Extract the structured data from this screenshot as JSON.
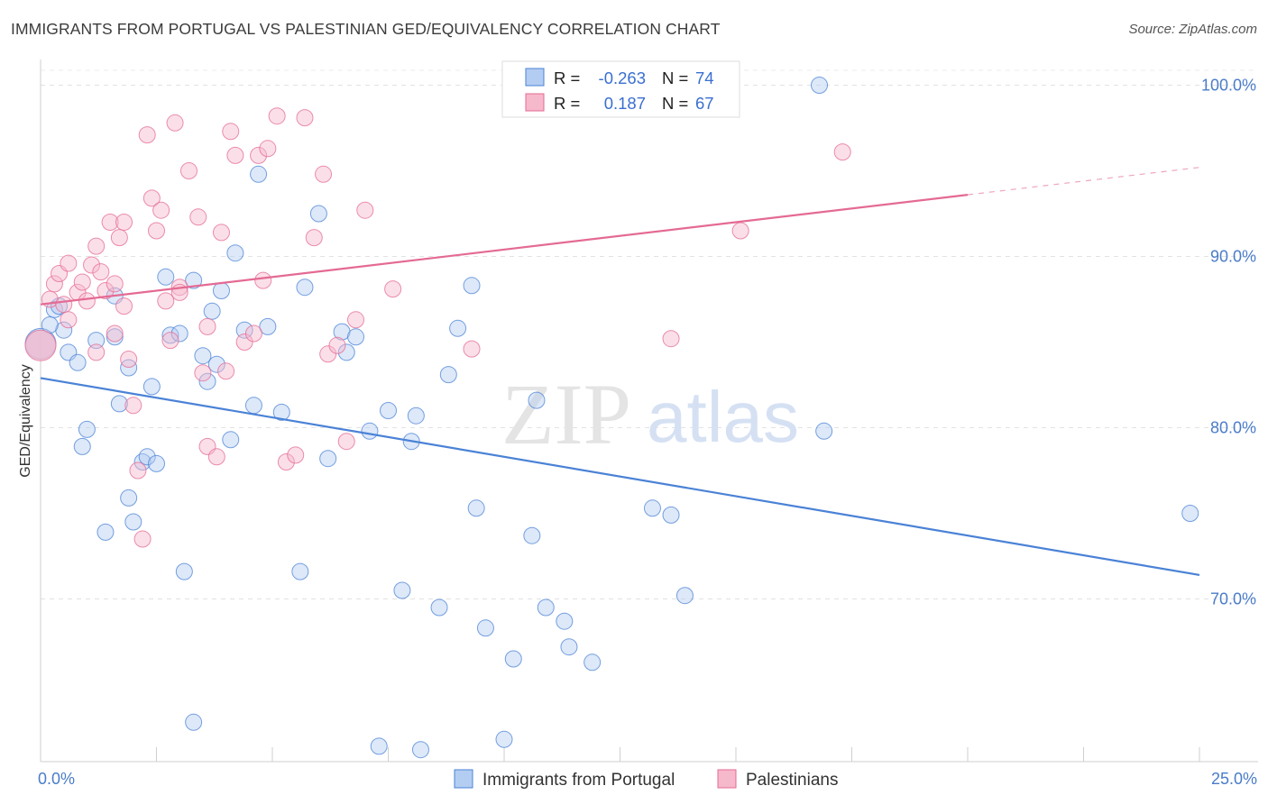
{
  "title": "IMMIGRANTS FROM PORTUGAL VS PALESTINIAN GED/EQUIVALENCY CORRELATION CHART",
  "source": "Source: ZipAtlas.com",
  "watermark": {
    "zip": "ZIP",
    "atlas": "atlas"
  },
  "legend_top": [
    {
      "r_label": "R =",
      "r_value": "-0.263",
      "n_label": "N =",
      "n_value": "74"
    },
    {
      "r_label": "R =",
      "r_value": "0.187",
      "n_label": "N =",
      "n_value": "67"
    }
  ],
  "legend_bottom": [
    "Immigrants from Portugal",
    "Palestinians"
  ],
  "chart_data": {
    "type": "scatter",
    "xlabel": "",
    "ylabel": "GED/Equivalency",
    "xlim": [
      0,
      25
    ],
    "ylim": [
      60.5,
      101.5
    ],
    "x_tick_labels": [
      {
        "value": 0,
        "label": "0.0%"
      },
      {
        "value": 25,
        "label": "25.0%"
      }
    ],
    "y_tick_labels": [
      {
        "value": 100,
        "label": "100.0%"
      },
      {
        "value": 90,
        "label": "90.0%"
      },
      {
        "value": 80,
        "label": "80.0%"
      },
      {
        "value": 70,
        "label": "70.0%"
      }
    ],
    "grid": true,
    "legend": "top-center",
    "colors": {
      "Immigrants from Portugal": "#4a82d6",
      "Palestinians": "#e46a93",
      "Immigrants from Portugal_fill": "#b3cdf2",
      "Palestinians_fill": "#f6b8cb"
    },
    "series": [
      {
        "name": "Immigrants from Portugal",
        "trend": {
          "x": [
            0,
            25
          ],
          "y": [
            82.9,
            71.4
          ],
          "dashed_from": null
        },
        "points": [
          [
            0.0,
            84.9
          ],
          [
            0.3,
            86.9
          ],
          [
            0.4,
            87.1
          ],
          [
            0.5,
            85.7
          ],
          [
            0.6,
            84.4
          ],
          [
            0.8,
            83.8
          ],
          [
            0.9,
            78.9
          ],
          [
            1.0,
            79.9
          ],
          [
            1.2,
            85.1
          ],
          [
            1.4,
            73.9
          ],
          [
            1.6,
            85.3
          ],
          [
            1.6,
            87.7
          ],
          [
            1.7,
            81.4
          ],
          [
            1.9,
            83.5
          ],
          [
            1.9,
            75.9
          ],
          [
            2.0,
            74.5
          ],
          [
            2.2,
            78.0
          ],
          [
            2.3,
            78.3
          ],
          [
            2.4,
            82.4
          ],
          [
            2.5,
            77.9
          ],
          [
            2.7,
            88.8
          ],
          [
            2.8,
            85.4
          ],
          [
            3.0,
            85.5
          ],
          [
            3.1,
            71.6
          ],
          [
            3.3,
            62.8
          ],
          [
            3.3,
            88.6
          ],
          [
            3.5,
            84.2
          ],
          [
            3.6,
            82.7
          ],
          [
            3.7,
            86.8
          ],
          [
            3.8,
            83.7
          ],
          [
            3.9,
            88.0
          ],
          [
            4.1,
            79.3
          ],
          [
            4.2,
            90.2
          ],
          [
            4.4,
            85.7
          ],
          [
            4.6,
            81.3
          ],
          [
            4.7,
            94.8
          ],
          [
            4.9,
            85.9
          ],
          [
            5.2,
            80.9
          ],
          [
            5.6,
            71.6
          ],
          [
            5.7,
            88.2
          ],
          [
            6.0,
            92.5
          ],
          [
            6.2,
            78.2
          ],
          [
            6.5,
            85.6
          ],
          [
            6.6,
            84.4
          ],
          [
            6.8,
            85.3
          ],
          [
            7.1,
            79.8
          ],
          [
            7.3,
            61.4
          ],
          [
            7.5,
            81.0
          ],
          [
            7.8,
            70.5
          ],
          [
            8.0,
            79.2
          ],
          [
            8.1,
            80.7
          ],
          [
            8.2,
            61.2
          ],
          [
            8.6,
            69.5
          ],
          [
            8.8,
            83.1
          ],
          [
            9.0,
            85.8
          ],
          [
            9.3,
            88.3
          ],
          [
            9.4,
            75.3
          ],
          [
            9.6,
            68.3
          ],
          [
            10.0,
            61.8
          ],
          [
            10.2,
            66.5
          ],
          [
            10.6,
            73.7
          ],
          [
            10.7,
            81.6
          ],
          [
            10.9,
            69.5
          ],
          [
            11.3,
            68.7
          ],
          [
            11.4,
            67.2
          ],
          [
            11.9,
            66.3
          ],
          [
            13.2,
            75.3
          ],
          [
            13.6,
            74.9
          ],
          [
            13.9,
            70.2
          ],
          [
            14.1,
            100.0
          ],
          [
            16.8,
            100.0
          ],
          [
            16.9,
            79.8
          ],
          [
            24.8,
            75.0
          ],
          [
            0.2,
            86.0
          ]
        ]
      },
      {
        "name": "Palestinians",
        "trend": {
          "x": [
            0,
            25
          ],
          "y": [
            87.2,
            95.2
          ],
          "dashed_from": 20
        },
        "points": [
          [
            0.0,
            84.8
          ],
          [
            0.2,
            87.5
          ],
          [
            0.3,
            88.4
          ],
          [
            0.4,
            89.0
          ],
          [
            0.5,
            87.2
          ],
          [
            0.6,
            86.3
          ],
          [
            0.6,
            89.6
          ],
          [
            0.8,
            87.9
          ],
          [
            0.9,
            88.5
          ],
          [
            1.0,
            87.4
          ],
          [
            1.1,
            89.5
          ],
          [
            1.2,
            84.4
          ],
          [
            1.2,
            90.6
          ],
          [
            1.3,
            89.1
          ],
          [
            1.4,
            88.0
          ],
          [
            1.5,
            92.0
          ],
          [
            1.6,
            85.5
          ],
          [
            1.6,
            88.4
          ],
          [
            1.7,
            91.1
          ],
          [
            1.8,
            92.0
          ],
          [
            1.8,
            87.1
          ],
          [
            1.9,
            84.0
          ],
          [
            2.0,
            81.3
          ],
          [
            2.1,
            77.5
          ],
          [
            2.2,
            73.5
          ],
          [
            2.3,
            97.1
          ],
          [
            2.4,
            93.4
          ],
          [
            2.5,
            91.5
          ],
          [
            2.6,
            92.7
          ],
          [
            2.7,
            87.4
          ],
          [
            2.8,
            85.1
          ],
          [
            2.9,
            97.8
          ],
          [
            3.0,
            88.2
          ],
          [
            3.0,
            87.9
          ],
          [
            3.2,
            95.0
          ],
          [
            3.4,
            92.3
          ],
          [
            3.5,
            83.2
          ],
          [
            3.6,
            78.9
          ],
          [
            3.6,
            85.9
          ],
          [
            3.8,
            78.3
          ],
          [
            3.9,
            91.4
          ],
          [
            4.0,
            83.3
          ],
          [
            4.1,
            97.3
          ],
          [
            4.2,
            95.9
          ],
          [
            4.4,
            85.0
          ],
          [
            4.6,
            85.5
          ],
          [
            4.7,
            95.9
          ],
          [
            4.8,
            88.6
          ],
          [
            4.9,
            96.3
          ],
          [
            5.1,
            98.2
          ],
          [
            5.3,
            78.0
          ],
          [
            5.5,
            78.4
          ],
          [
            5.7,
            98.1
          ],
          [
            5.9,
            91.1
          ],
          [
            6.1,
            94.8
          ],
          [
            6.2,
            84.3
          ],
          [
            6.4,
            84.8
          ],
          [
            6.6,
            79.2
          ],
          [
            6.8,
            86.3
          ],
          [
            7.0,
            92.7
          ],
          [
            7.6,
            88.1
          ],
          [
            9.3,
            84.6
          ],
          [
            11.0,
            100.0
          ],
          [
            11.4,
            100.0
          ],
          [
            13.6,
            85.2
          ],
          [
            15.1,
            91.5
          ],
          [
            17.3,
            96.1
          ]
        ]
      }
    ]
  }
}
